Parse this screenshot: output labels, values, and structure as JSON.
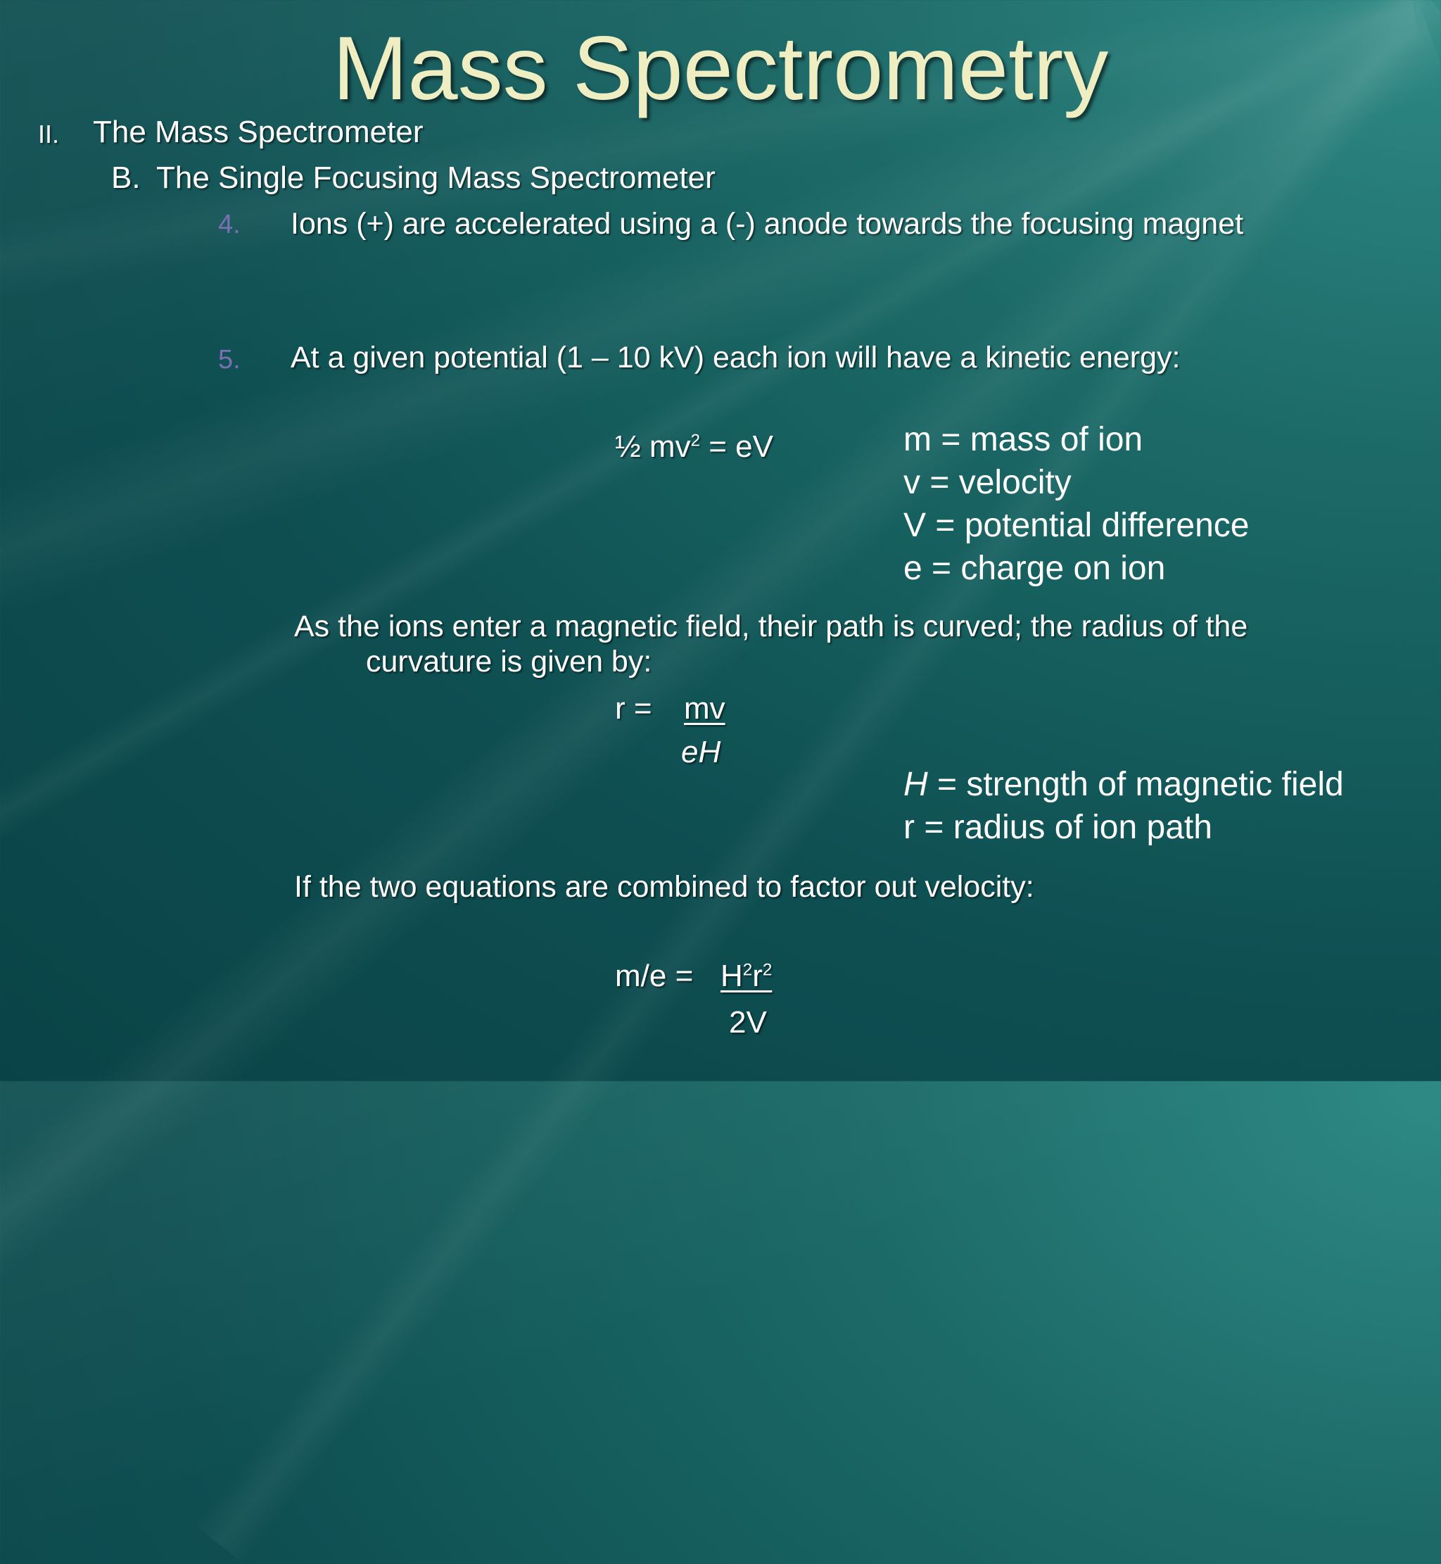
{
  "title": "Mass Spectrometry",
  "outline": {
    "level1": {
      "marker": "II.",
      "text": "The Mass Spectrometer"
    },
    "level2": {
      "marker": "B.",
      "text": "The Single Focusing Mass Spectrometer"
    },
    "item4": {
      "number": "4.",
      "text": "Ions (+) are accelerated using a (-) anode towards the focusing magnet"
    },
    "item5": {
      "number": "5.",
      "text": "At a given potential (1 – 10 kV) each ion will have a kinetic energy:"
    }
  },
  "equation1": {
    "lhs": "½ mv",
    "exp": "2",
    "rhs": " = eV"
  },
  "legend1": [
    "m = mass of ion",
    "v = velocity",
    "V = potential difference",
    "e = charge on ion"
  ],
  "paragraph_magnetic": {
    "line1": "As the ions enter a magnetic field, their path is curved; the radius of the",
    "line2": "curvature is given by:"
  },
  "equation2": {
    "lhs": "r  =",
    "numerator": "mv",
    "denominator": "eH"
  },
  "legend2": [
    {
      "symbol": "H",
      "text": " = strength of magnetic field"
    },
    {
      "symbol": "r",
      "text": "  = radius of ion path"
    }
  ],
  "paragraph_combined": "If the two equations are combined to factor out velocity:",
  "equation3": {
    "lhs": "m/e  =",
    "num_a": "H",
    "num_a_exp": "2",
    "num_b": "r",
    "num_b_exp": "2",
    "denominator": "2V"
  },
  "colors": {
    "title": "#eeeec2",
    "text": "#ffffff",
    "number": "#7a6fb0",
    "background": "#0e4f52"
  }
}
